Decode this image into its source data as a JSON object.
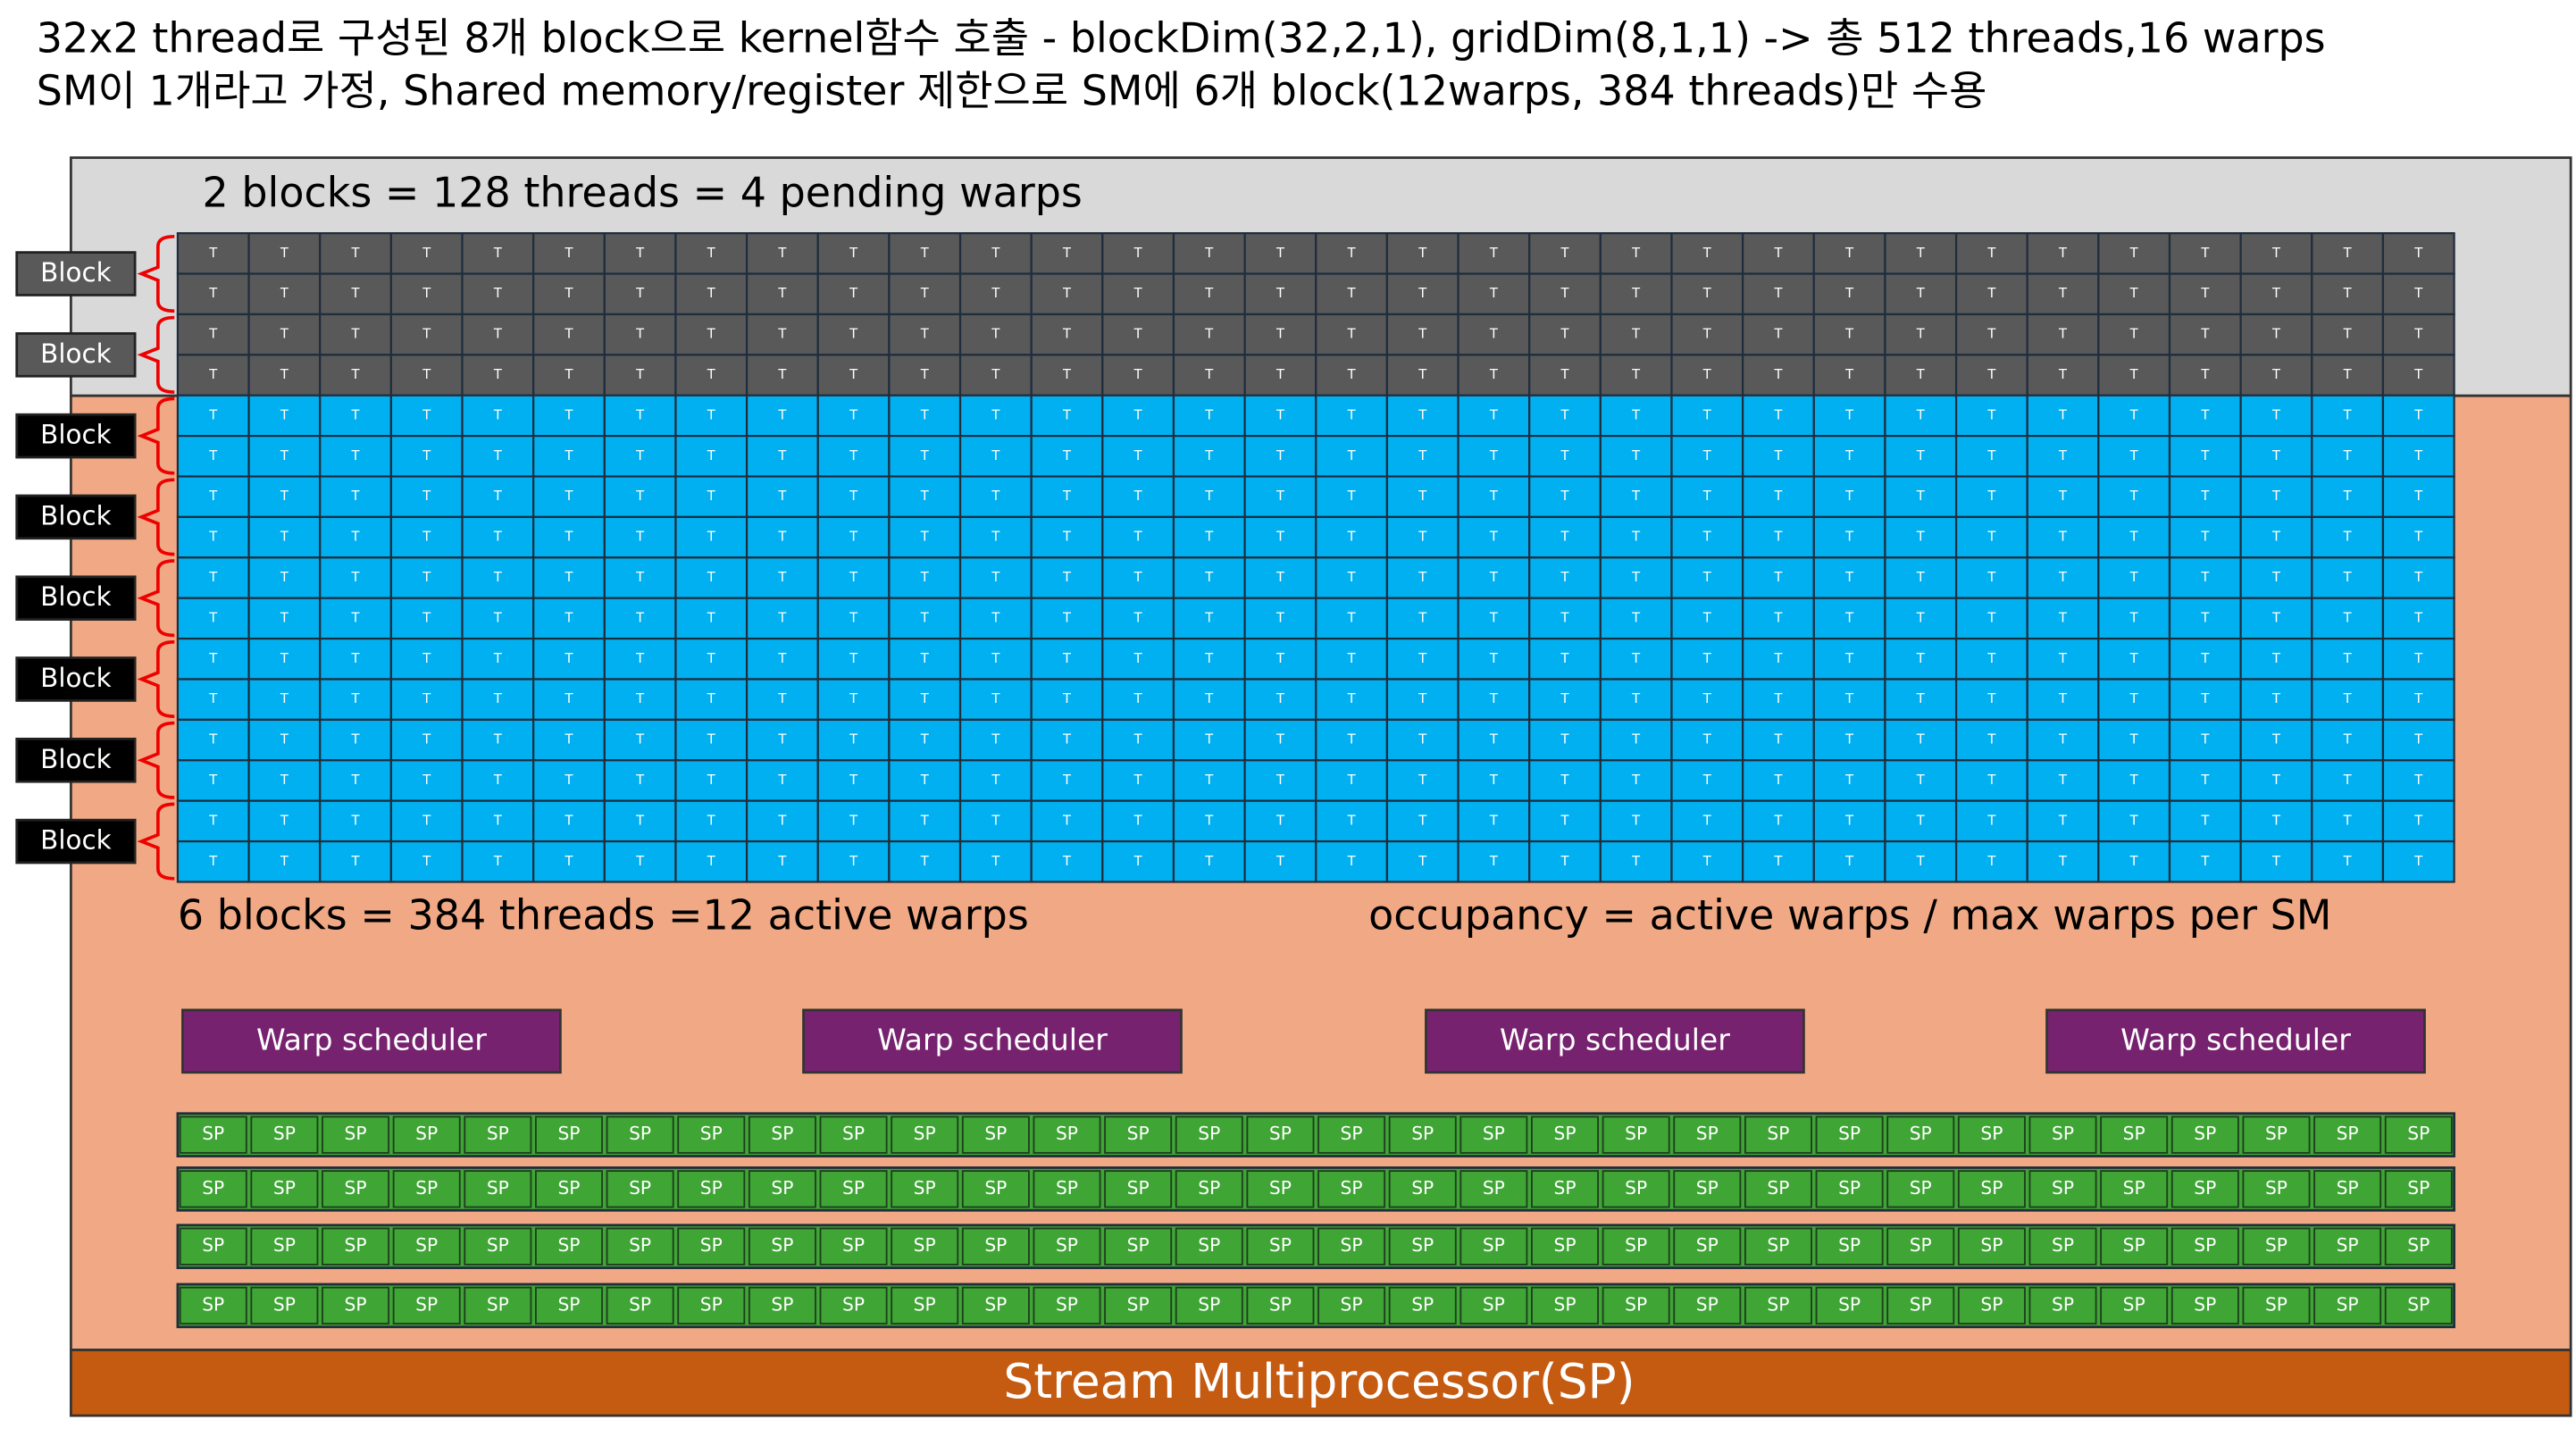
{
  "header": {
    "lines": [
      "32x2 thread로 구성된 8개 block으로 kernel함수 호출 - blockDim(32,2,1), gridDim(8,1,1) -> 총 512 threads,16 warps",
      "SM이 1개라고 가정, Shared memory/register 제한으로 SM에 6개 block(12warps, 384 threads)만 수용"
    ]
  },
  "pending_label": "2 blocks = 128 threads = 4 pending warps",
  "active_label": "6 blocks = 384 threads =12 active warps",
  "occupancy_label": "occupancy = active warps / max warps per SM",
  "blocks": [
    {
      "label": "Block",
      "color": "#595959"
    },
    {
      "label": "Block",
      "color": "#595959"
    },
    {
      "label": "Block",
      "color": "#00b0f0"
    },
    {
      "label": "Block",
      "color": "#00b0f0"
    },
    {
      "label": "Block",
      "color": "#00b0f0"
    },
    {
      "label": "Block",
      "color": "#00b0f0"
    },
    {
      "label": "Block",
      "color": "#00b0f0"
    },
    {
      "label": "Block",
      "color": "#00b0f0"
    }
  ],
  "thread_label": "T",
  "warp_schedulers": [
    "Warp scheduler",
    "Warp scheduler",
    "Warp scheduler",
    "Warp scheduler"
  ],
  "sp_label": "SP",
  "footer": "Stream Multiprocessor(SP)"
}
